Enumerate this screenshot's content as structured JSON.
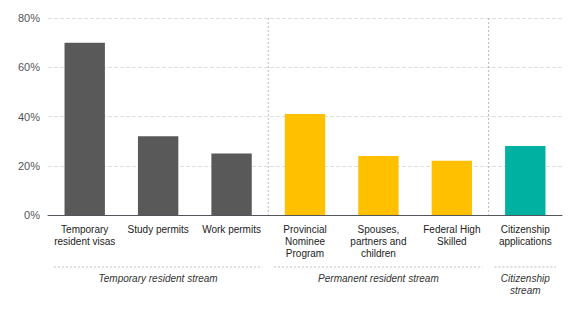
{
  "chart_data": {
    "type": "bar",
    "categories": [
      "Temporary\nresident visas",
      "Study permits",
      "Work permits",
      "Provincial\nNominee\nProgram",
      "Spouses,\npartners and\nchildren",
      "Federal High\nSkilled",
      "Citizenship\napplications"
    ],
    "values": [
      70,
      32,
      25,
      41,
      24,
      22,
      28
    ],
    "colors": [
      "#595959",
      "#595959",
      "#595959",
      "#FFC000",
      "#FFC000",
      "#FFC000",
      "#00B0A0"
    ],
    "groups": [
      {
        "label": "Temporary resident stream",
        "categories": [
          "Temporary\nresident visas",
          "Study permits",
          "Work permits"
        ]
      },
      {
        "label": "Permanent resident stream",
        "categories": [
          "Provincial\nNominee\nProgram",
          "Spouses,\npartners and\nchildren",
          "Federal High\nSkilled"
        ]
      },
      {
        "label": "Citizenship\nstream",
        "categories": [
          "Citizenship\napplications"
        ]
      }
    ],
    "ylim": [
      0,
      80
    ],
    "yticks": [
      {
        "value": 0,
        "label": "0%"
      },
      {
        "value": 20,
        "label": "20%"
      },
      {
        "value": 40,
        "label": "40%"
      },
      {
        "value": 60,
        "label": "60%"
      },
      {
        "value": 80,
        "label": "80%"
      }
    ],
    "grid": true
  }
}
